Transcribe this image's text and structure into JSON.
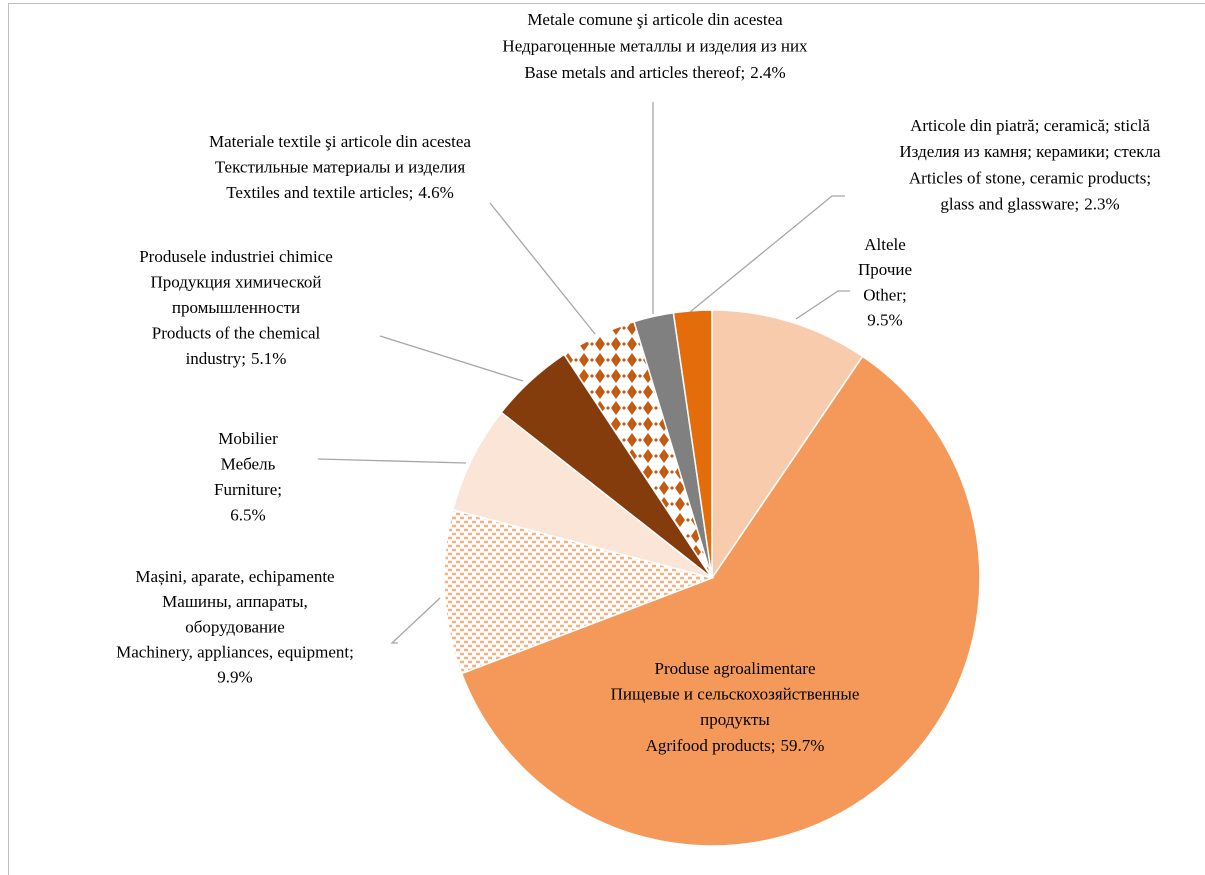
{
  "chart_data": {
    "type": "pie",
    "categories": [
      [
        "Altele",
        "Прочие",
        "Other;"
      ],
      [
        "Produse agroalimentare",
        "Пищевые и сельскохозяйственные",
        "продукты",
        "Agrifood products;"
      ],
      [
        "Mașini, aparate, echipamente",
        "Машины, аппараты,",
        "оборудование",
        "Machinery, appliances, equipment;"
      ],
      [
        "Mobilier",
        "Мебель",
        "Furniture;"
      ],
      [
        "Produsele industriei chimice",
        "Продукция химической",
        "промышленности",
        "Products of the chemical",
        "industry;"
      ],
      [
        "Materiale textile şi articole din acestea",
        "Текстильные материалы и изделия",
        "Textiles and textile articles;"
      ],
      [
        "Metale comune şi articole din acestea",
        "Недрагоценные металлы и изделия из них",
        "Base metals and articles thereof;"
      ],
      [
        "Articole din piatră; ceramică; sticlă",
        "Изделия из камня; керамики; стекла",
        "Articles of stone, ceramic products;",
        "glass and glassware;"
      ]
    ],
    "values": [
      9.5,
      59.7,
      9.9,
      6.5,
      5.1,
      4.6,
      2.4,
      2.3
    ],
    "value_labels": [
      "9.5%",
      "59.7%",
      "9.9%",
      "6.5%",
      "5.1%",
      "4.6%",
      "2.4%",
      "2.3%"
    ],
    "colors": [
      "#f8cbad",
      "#f4995a",
      "#f4b183",
      "#fbe5d6",
      "#843c0c",
      "#c55a11",
      "#808080",
      "#e46c0a"
    ],
    "patterns": [
      null,
      null,
      "dots",
      null,
      null,
      "diamonds",
      null,
      null
    ]
  }
}
